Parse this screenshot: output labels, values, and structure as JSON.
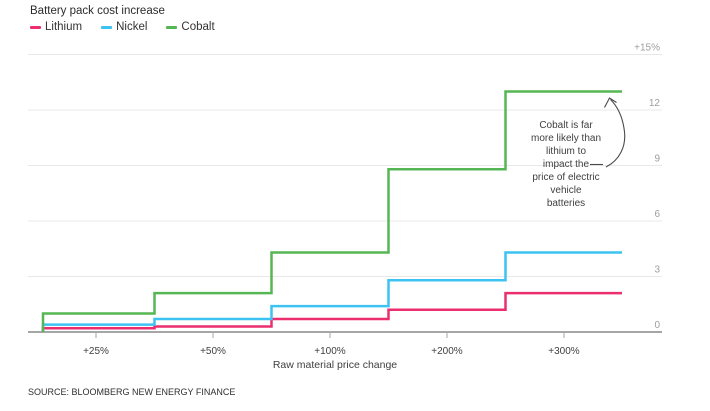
{
  "chart_data": {
    "type": "line",
    "subtype": "step",
    "title": "Battery pack cost increase",
    "xlabel": "Raw material price change",
    "ylabel": "",
    "categories": [
      "+25%",
      "+50%",
      "+100%",
      "+200%",
      "+300%"
    ],
    "series": [
      {
        "name": "Lithium",
        "color": "#ec2e6e",
        "values": [
          0.2,
          0.3,
          0.7,
          1.2,
          2.1
        ]
      },
      {
        "name": "Nickel",
        "color": "#3cc3f1",
        "values": [
          0.4,
          0.7,
          1.4,
          2.8,
          4.3
        ]
      },
      {
        "name": "Cobalt",
        "color": "#55b654",
        "values": [
          1.0,
          2.1,
          4.3,
          8.8,
          13.0
        ]
      }
    ],
    "y_ticks": [
      {
        "value": 0,
        "label": "0"
      },
      {
        "value": 3,
        "label": "3"
      },
      {
        "value": 6,
        "label": "6"
      },
      {
        "value": 9,
        "label": "9"
      },
      {
        "value": 12,
        "label": "12"
      },
      {
        "value": 15,
        "label": "+15%"
      }
    ],
    "ylim": [
      0,
      15
    ],
    "grid": "horizontal",
    "legend_position": "top-left",
    "annotation": "Cobalt is far\nmore likely than\nlithium to\nimpact the\nprice of electric\nvehicle\nbatteries"
  },
  "footer": {
    "source": "SOURCE: BLOOMBERG NEW ENERGY FINANCE"
  }
}
